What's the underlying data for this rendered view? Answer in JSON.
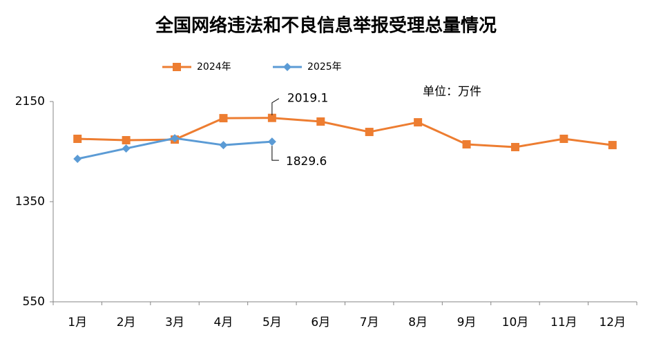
{
  "chart_data": {
    "type": "line",
    "title": "全国网络违法和不良信息举报受理总量情况",
    "unit_label": "单位：万件",
    "categories": [
      "1月",
      "2月",
      "3月",
      "4月",
      "5月",
      "6月",
      "7月",
      "8月",
      "9月",
      "10月",
      "11月",
      "12月"
    ],
    "series": [
      {
        "name": "2024年",
        "color": "#ed7d31",
        "marker": "square",
        "values": [
          1852,
          1841,
          1846,
          2017,
          2019.1,
          1990,
          1907,
          1984,
          1808,
          1786,
          1852,
          1802
        ]
      },
      {
        "name": "2025年",
        "color": "#5b9bd5",
        "marker": "diamond",
        "values": [
          1692,
          1775,
          1857,
          1802,
          1829.6,
          null,
          null,
          null,
          null,
          null,
          null,
          null
        ]
      }
    ],
    "ylim": [
      550,
      2150
    ],
    "yticks": [
      550,
      1350,
      2150
    ],
    "grid": false,
    "legend": "top"
  }
}
